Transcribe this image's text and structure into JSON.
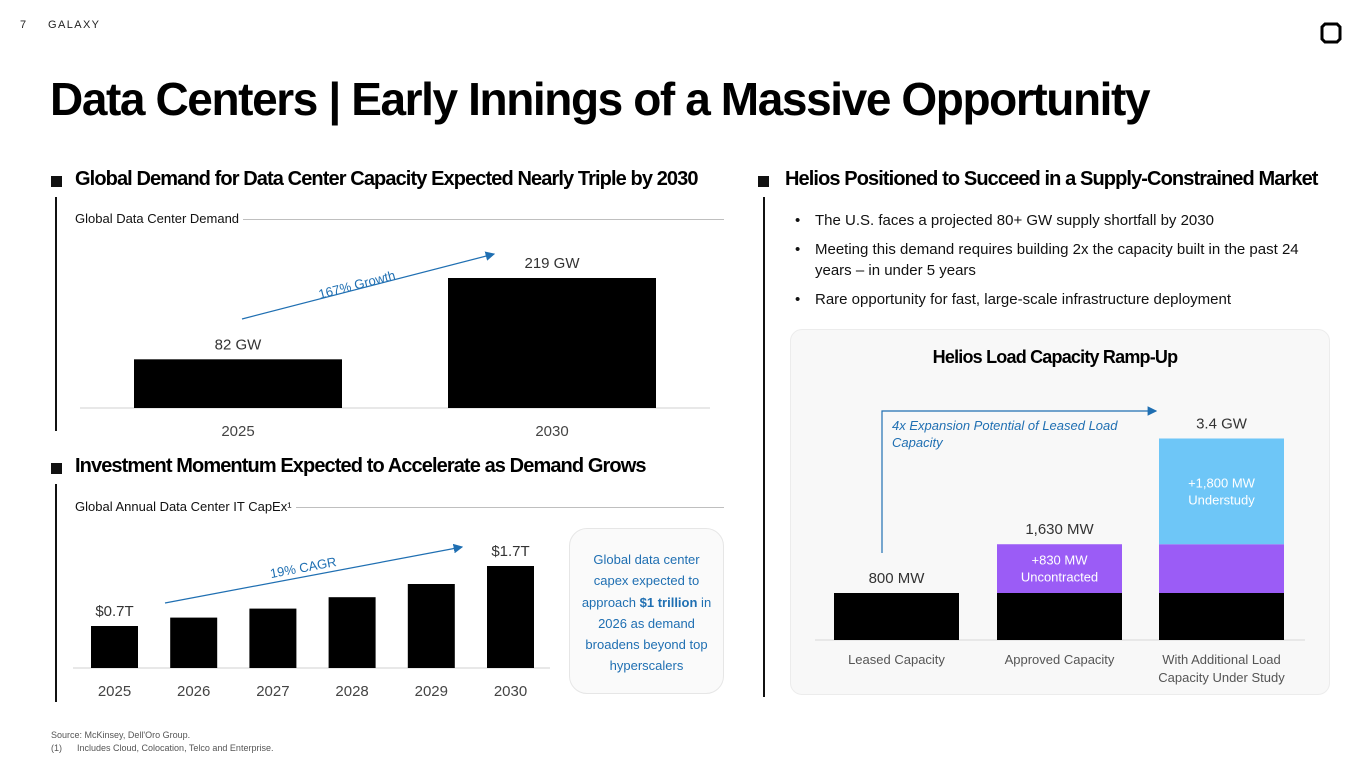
{
  "header": {
    "page_number": "7",
    "brand": "GALAXY",
    "logo_icon": "galaxy-logo-icon"
  },
  "title": "Data Centers | Early Innings of a Massive Opportunity",
  "left_top": {
    "heading": "Global Demand for Data Center Capacity Expected Nearly Triple by 2030",
    "chart_title": "Global Data Center Demand",
    "growth_label": "167% Growth"
  },
  "left_bottom": {
    "heading": "Investment Momentum Expected to Accelerate as Demand Grows",
    "chart_title": "Global Annual Data Center IT CapEx¹",
    "cagr_label": "19% CAGR",
    "callout": {
      "before": "Global data center capex expected to approach ",
      "bold": "$1 trillion",
      "after": " in 2026 as demand broadens beyond top hyperscalers"
    }
  },
  "right": {
    "heading": "Helios Positioned to Succeed in a Supply-Constrained Market",
    "bullets": [
      "The U.S. faces a projected 80+ GW supply shortfall by 2030",
      "Meeting this demand requires building 2x the capacity built in the past 24 years – in under 5 years",
      "Rare opportunity for fast, large-scale infrastructure deployment"
    ],
    "panel_title": "Helios Load Capacity Ramp-Up",
    "annotation": "4x Expansion Potential of Leased Load Capacity"
  },
  "colors": {
    "accent_blue": "#1f6fb2",
    "bar": "#000000",
    "purple": "#9b5cf6",
    "light_blue": "#6ec6f7"
  },
  "footer": {
    "source": "Source: McKinsey, Dell'Oro Group.",
    "note_marker": "(1)",
    "note": "Includes Cloud, Colocation, Telco and Enterprise."
  },
  "chart_data": [
    {
      "type": "bar",
      "categories": [
        "2025",
        "2030"
      ],
      "values": [
        82,
        219
      ],
      "data_labels": [
        "82 GW",
        "219 GW"
      ],
      "unit": "GW"
    },
    {
      "type": "bar",
      "categories": [
        "2025",
        "2026",
        "2027",
        "2028",
        "2029",
        "2030"
      ],
      "values": [
        0.7,
        0.84,
        0.99,
        1.18,
        1.4,
        1.7
      ],
      "data_labels": [
        "$0.7T",
        "",
        "",
        "",
        "",
        "$1.7T"
      ],
      "unit": "$T"
    },
    {
      "type": "bar",
      "stacked": true,
      "categories": [
        "Leased Capacity",
        "Approved Capacity",
        "With Additional Load Capacity Under Study"
      ],
      "series": [
        {
          "values": [
            800,
            800,
            800
          ],
          "color": "#000000"
        },
        {
          "values": [
            0,
            830,
            830
          ],
          "color": "#9b5cf6",
          "segment_labels": [
            "",
            "+830 MW Uncontracted",
            ""
          ]
        },
        {
          "values": [
            0,
            0,
            1800
          ],
          "color": "#6ec6f7",
          "segment_labels": [
            "",
            "",
            "+1,800 MW Understudy"
          ]
        }
      ],
      "total_labels": [
        "800 MW",
        "1,630 MW",
        "3.4 GW"
      ],
      "unit": "MW"
    }
  ]
}
